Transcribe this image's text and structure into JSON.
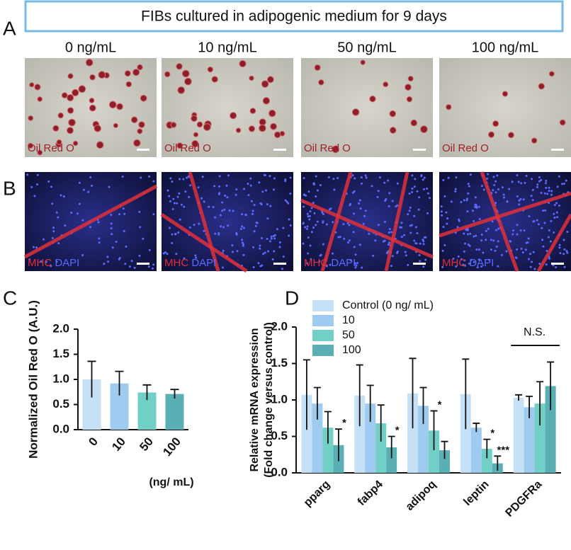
{
  "figure": {
    "title": "FIBs cultured in adipogenic medium for 9 days",
    "panel_labels": [
      "A",
      "B",
      "C",
      "D"
    ],
    "concentrations": [
      "0 ng/mL",
      "10 ng/mL",
      "50 ng/mL",
      "100 ng/mL"
    ],
    "stain_a": "Oil Red O",
    "stain_b_red": "MHC",
    "stain_b_blue": "DAPI"
  },
  "chart_data": [
    {
      "type": "bar",
      "y_label": "Normalized Oil Red O (A.U.)",
      "x_label": "(ng/ mL)",
      "categories": [
        "0",
        "10",
        "50",
        "100"
      ],
      "values": [
        1.0,
        0.92,
        0.74,
        0.71
      ],
      "errors": [
        0.36,
        0.24,
        0.15,
        0.09
      ],
      "colors": [
        "#c6e1f6",
        "#9fcbf1",
        "#70d0c6",
        "#5aafb4"
      ],
      "ylim": [
        0,
        2
      ],
      "yticks": [
        {
          "value": 0,
          "label": "0.0"
        },
        {
          "value": 0.5,
          "label": "0.5"
        },
        {
          "value": 1,
          "label": "1.0"
        },
        {
          "value": 1.5,
          "label": "1.5"
        },
        {
          "value": 2,
          "label": "2.0"
        }
      ]
    },
    {
      "type": "grouped-bar",
      "y_label": [
        "Relative mRNA expression",
        "(Fold change versus control)"
      ],
      "categories": [
        "pparg",
        "fabp4",
        "adipoq",
        "leptin",
        "PDGFRa"
      ],
      "series": [
        {
          "name": "Control (0 ng/ mL)",
          "color": "#c6e1f6",
          "values": [
            1.07,
            1.06,
            1.09,
            1.08,
            1.03
          ],
          "errors": [
            0.48,
            0.42,
            0.48,
            0.48,
            0.04
          ]
        },
        {
          "name": "10",
          "color": "#9fcbf1",
          "values": [
            0.95,
            0.95,
            0.92,
            0.62,
            0.9
          ],
          "errors": [
            0.22,
            0.25,
            0.25,
            0.06,
            0.15
          ]
        },
        {
          "name": "50",
          "color": "#70d0c6",
          "values": [
            0.62,
            0.68,
            0.58,
            0.33,
            0.95
          ],
          "errors": [
            0.22,
            0.25,
            0.27,
            0.13,
            0.3
          ]
        },
        {
          "name": "100",
          "color": "#5aafb4",
          "values": [
            0.38,
            0.35,
            0.31,
            0.13,
            1.19
          ],
          "errors": [
            0.22,
            0.15,
            0.12,
            0.1,
            0.33
          ]
        }
      ],
      "annotations": [
        {
          "text": "*",
          "category": 0,
          "series": 3
        },
        {
          "text": "*",
          "category": 1,
          "series": 3
        },
        {
          "text": "*",
          "category": 2,
          "series": 2
        },
        {
          "text": "*",
          "category": 3,
          "series": 2
        },
        {
          "text": "***",
          "category": 3,
          "series": 3
        }
      ],
      "group_note": {
        "text": "N.S.",
        "category": 4
      },
      "ylim": [
        0,
        2
      ],
      "yticks": [
        {
          "value": 0,
          "label": "0.0"
        },
        {
          "value": 0.5,
          "label": "0.5"
        },
        {
          "value": 1,
          "label": "1.0"
        },
        {
          "value": 1.5,
          "label": "1.5"
        },
        {
          "value": 2,
          "label": "2.0"
        }
      ]
    }
  ]
}
